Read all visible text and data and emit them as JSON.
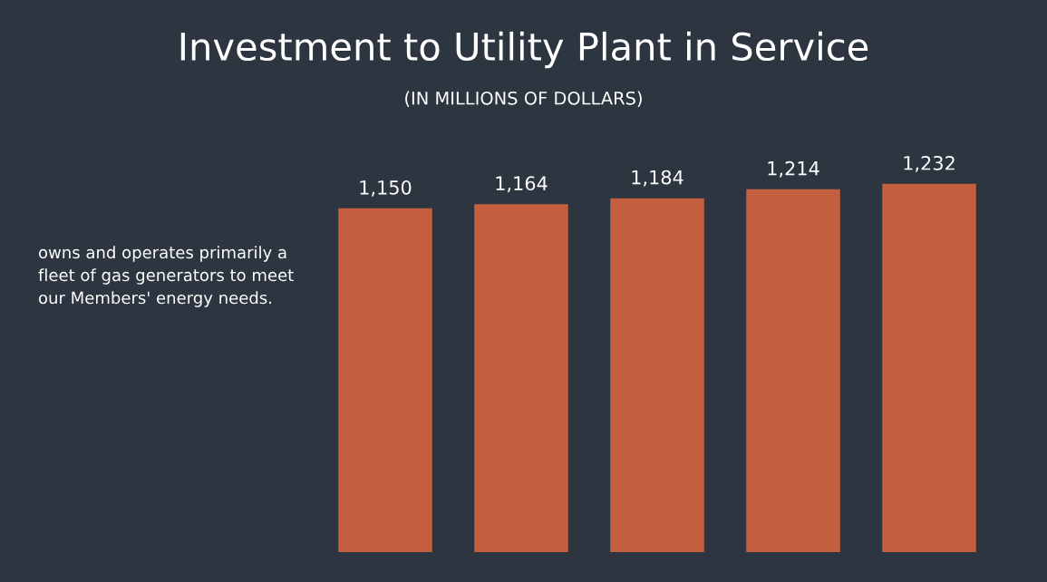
{
  "chart_data": {
    "type": "bar",
    "title": "Investment to Utility Plant in Service",
    "subtitle": "(IN MILLIONS OF DOLLARS)",
    "categories": [
      null,
      null,
      null,
      null,
      null
    ],
    "values": [
      1150,
      1164,
      1184,
      1214,
      1232
    ],
    "value_labels": [
      "1,150",
      "1,164",
      "1,184",
      "1,214",
      "1,232"
    ],
    "color": "#c4603f",
    "annotations": [
      "owns and operates primarily a fleet of gas generators to meet our Members' energy needs."
    ]
  }
}
